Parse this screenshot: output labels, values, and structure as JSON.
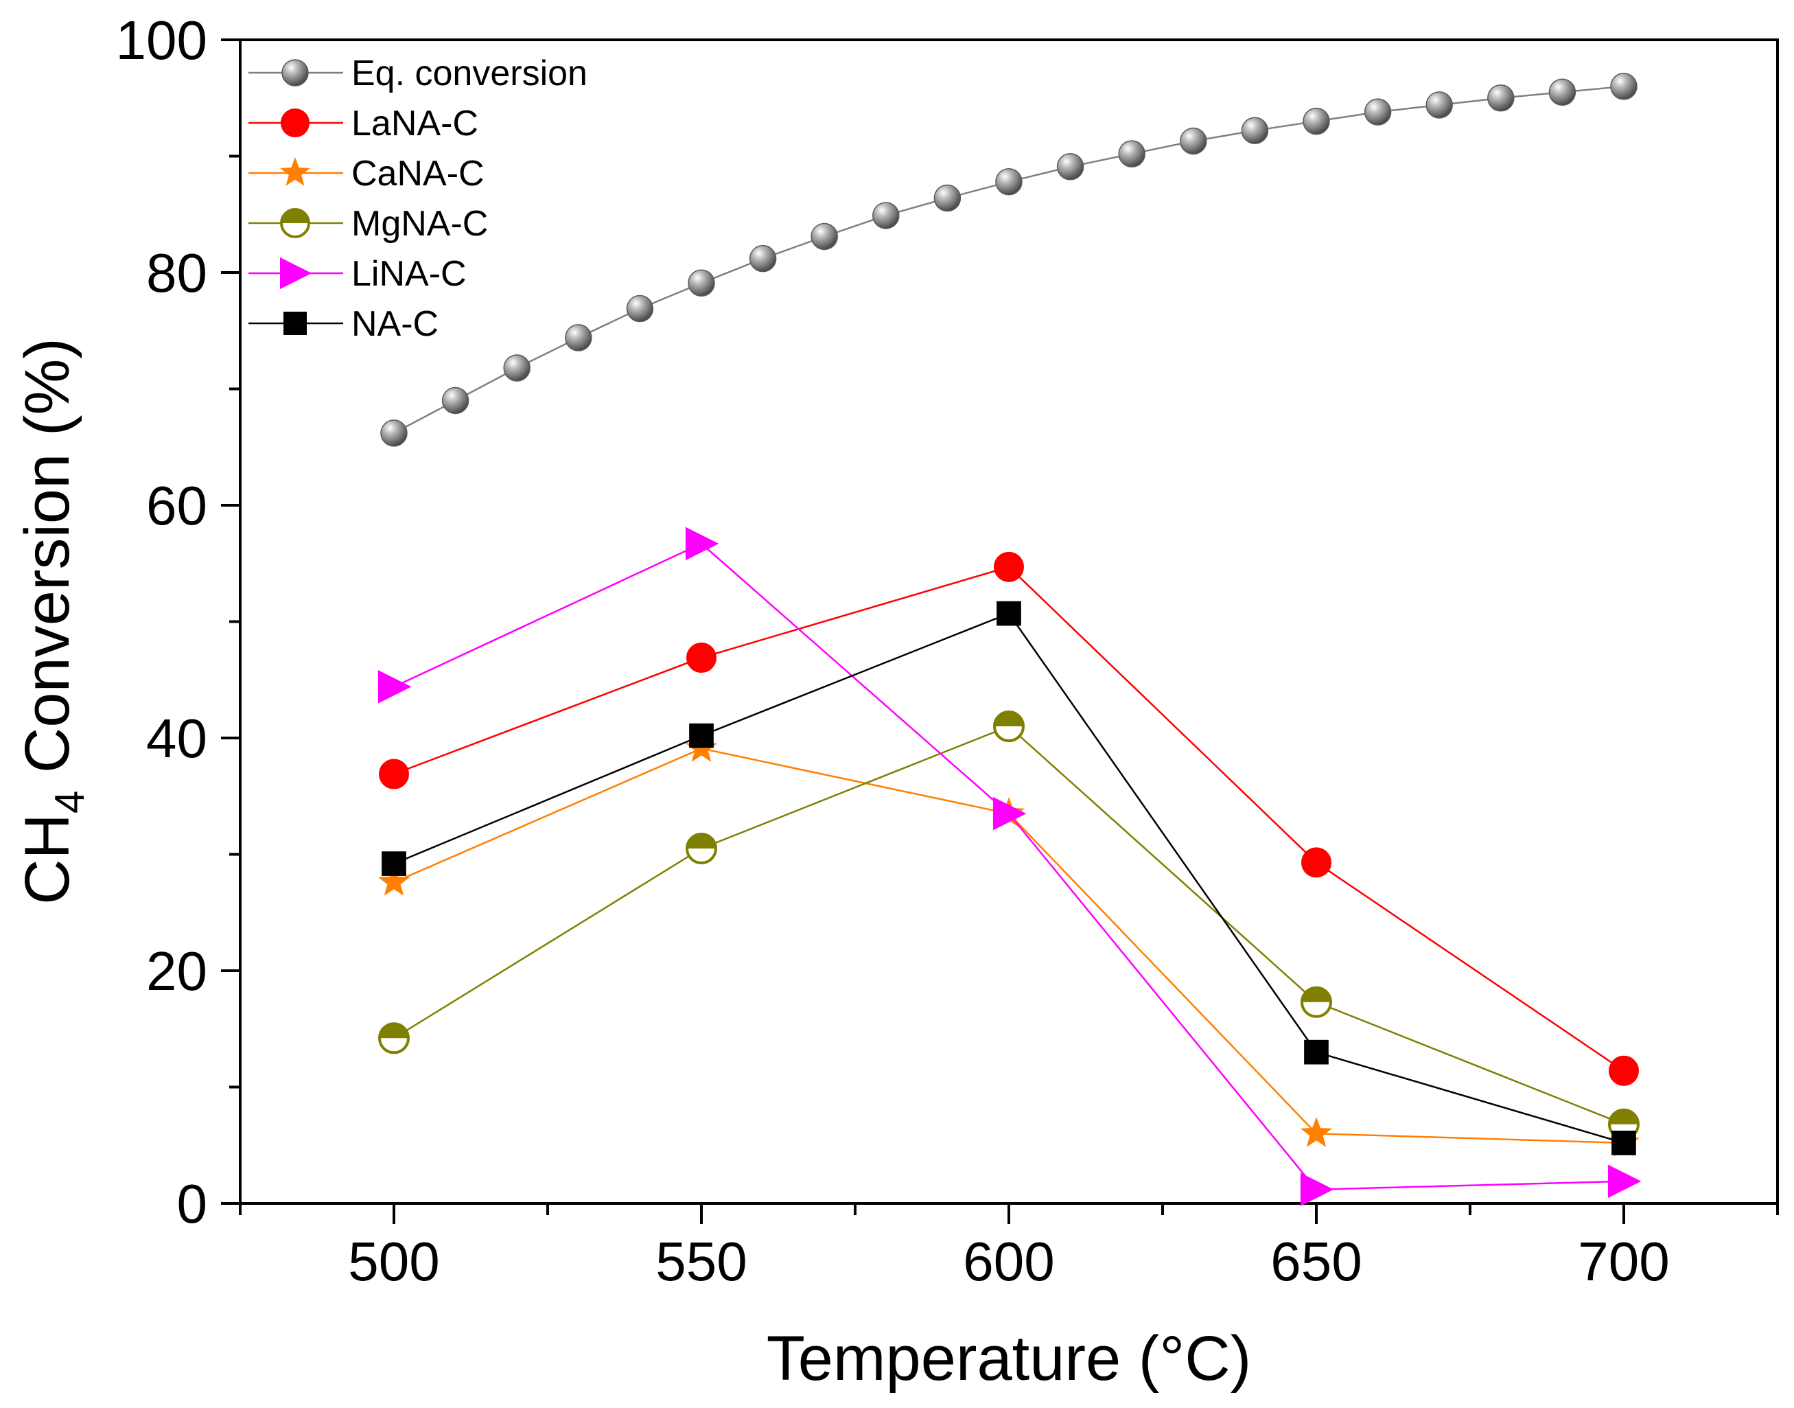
{
  "chart_data": {
    "type": "line",
    "title": "",
    "xlabel": "Temperature (°C)",
    "ylabel_main": "CH",
    "ylabel_sub": "4",
    "ylabel_rest": " Conversion (%)",
    "xlim": [
      475,
      725
    ],
    "ylim": [
      0,
      100
    ],
    "x_ticks": [
      500,
      550,
      600,
      650,
      700
    ],
    "y_ticks": [
      0,
      20,
      40,
      60,
      80,
      100
    ],
    "legend_position": "top-left",
    "series": [
      {
        "name": "Eq. conversion",
        "color": "#808080",
        "marker": "sphere",
        "x": [
          500,
          510,
          520,
          530,
          540,
          550,
          560,
          570,
          580,
          590,
          600,
          610,
          620,
          630,
          640,
          650,
          660,
          670,
          680,
          690,
          700
        ],
        "values": [
          66.2,
          69.0,
          71.8,
          74.4,
          76.9,
          79.1,
          81.2,
          83.1,
          84.9,
          86.4,
          87.8,
          89.1,
          90.2,
          91.3,
          92.2,
          93.0,
          93.8,
          94.4,
          95.0,
          95.5,
          96.0
        ]
      },
      {
        "name": "LaNA-C",
        "color": "#ff0000",
        "marker": "circle",
        "x": [
          500,
          550,
          600,
          650,
          700
        ],
        "values": [
          36.9,
          46.9,
          54.7,
          29.3,
          11.4
        ]
      },
      {
        "name": "CaNA-C",
        "color": "#ff8000",
        "marker": "star",
        "x": [
          500,
          550,
          600,
          650,
          700
        ],
        "values": [
          27.6,
          39.1,
          33.5,
          6.0,
          5.2
        ]
      },
      {
        "name": "MgNA-C",
        "color": "#808000",
        "marker": "half-circle",
        "x": [
          500,
          550,
          600,
          650,
          700
        ],
        "values": [
          14.2,
          30.5,
          41.0,
          17.3,
          6.8
        ]
      },
      {
        "name": "LiNA-C",
        "color": "#ff00ff",
        "marker": "triangle-right",
        "x": [
          500,
          550,
          600,
          650,
          700
        ],
        "values": [
          44.4,
          56.7,
          33.5,
          1.2,
          1.9
        ]
      },
      {
        "name": "NA-C",
        "color": "#000000",
        "marker": "square",
        "x": [
          500,
          550,
          600,
          650,
          700
        ],
        "values": [
          29.2,
          40.2,
          50.7,
          13.0,
          5.2
        ]
      }
    ]
  }
}
